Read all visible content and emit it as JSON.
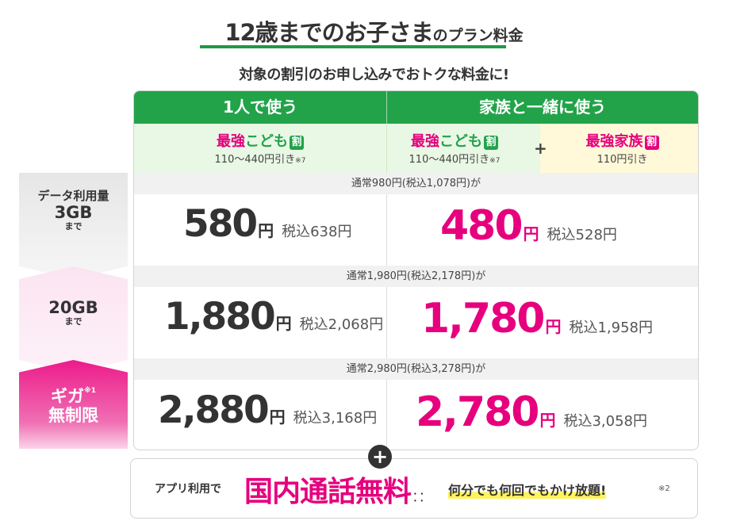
{
  "heading": {
    "title_main": "12歳までのお子さま",
    "title_small": "のプラン料金",
    "subtitle": "対象の割引のお申し込みでおトクな料金に!"
  },
  "columns": {
    "single": "1人で使う",
    "family": "家族と一緒に使う"
  },
  "discounts": {
    "kids": {
      "name_pink": "最強",
      "name_green": "こども",
      "badge": "割",
      "detail": "110〜440円引き",
      "note": "※7"
    },
    "plus": "+",
    "family": {
      "name": "最強家族",
      "badge": "割",
      "detail": "110円引き"
    }
  },
  "tiers": [
    {
      "label_top": "データ利用量",
      "label_main": "3GB",
      "label_bottom": "まで",
      "regular": "通常980円(税込1,078円)が",
      "single_price": "580",
      "single_tax": "税込638円",
      "family_price": "480",
      "family_tax": "税込528円"
    },
    {
      "label_main": "20GB",
      "label_bottom": "まで",
      "regular": "通常1,980円(税込2,178円)が",
      "single_price": "1,880",
      "single_tax": "税込2,068円",
      "family_price": "1,780",
      "family_tax": "税込1,958円"
    },
    {
      "label_main": "ギガ",
      "label_note": "※1",
      "label_bottom": "無制限",
      "regular": "通常2,980円(税込3,278円)が",
      "single_price": "2,880",
      "single_tax": "税込3,168円",
      "family_price": "2,780",
      "family_tax": "税込3,058円"
    }
  ],
  "yen": "円",
  "plus_icon": "+",
  "call": {
    "app": "アプリ利用で",
    "main": "国内通話無料",
    "free": "何分でも何回でもかけ放題!",
    "note": "※2"
  },
  "colors": {
    "green": "#22a349",
    "pink": "#e6007e",
    "light_green": "#e9f7e5",
    "light_yellow": "#fff9d9"
  }
}
